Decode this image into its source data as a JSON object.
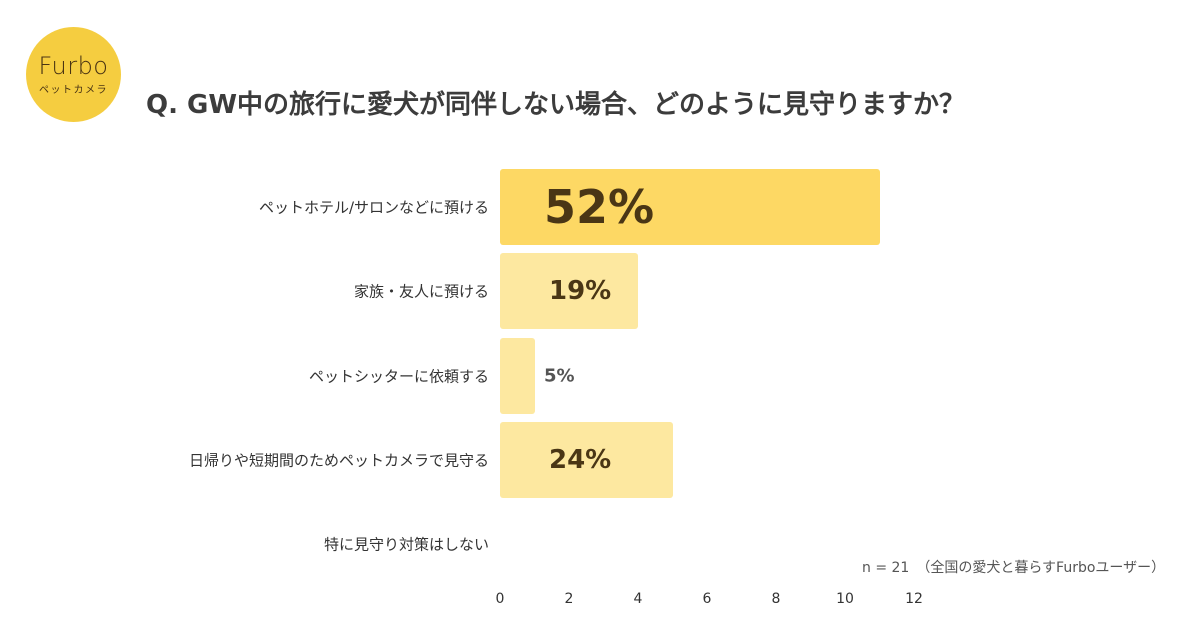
{
  "logo": {
    "brand": "Furbo",
    "sub": "ペットカメラ",
    "color": "#f5cd40"
  },
  "title": "Q. GW中の旅行に愛犬が同伴しない場合、どのように見守りますか？",
  "note": "n = 21　（全国の愛犬と暮らすFurboユーザー）",
  "colors": {
    "highlight": "#fdd864",
    "normal": "#fde8a0",
    "label": "#4a3615"
  },
  "chart_data": {
    "type": "bar",
    "orientation": "horizontal",
    "title": "Q. GW中の旅行に愛犬が同伴しない場合、どのように見守りますか？",
    "categories": [
      "ペットホテル/サロンなどに預ける",
      "家族・友人に預ける",
      "ペットシッターに依頼する",
      "日帰りや短期間のためペットカメラで見守る",
      "特に見守り対策はしない"
    ],
    "values": [
      11,
      4,
      1,
      5,
      0
    ],
    "percent_labels": [
      "52%",
      "19%",
      "5%",
      "24%",
      ""
    ],
    "xlabel": "",
    "ylabel": "",
    "xlim": [
      0,
      12
    ],
    "xticks": [
      "0",
      "2",
      "4",
      "6",
      "8",
      "10",
      "12"
    ],
    "grid": false,
    "annotation": "n = 21　（全国の愛犬と暮らすFurboユーザー）"
  }
}
